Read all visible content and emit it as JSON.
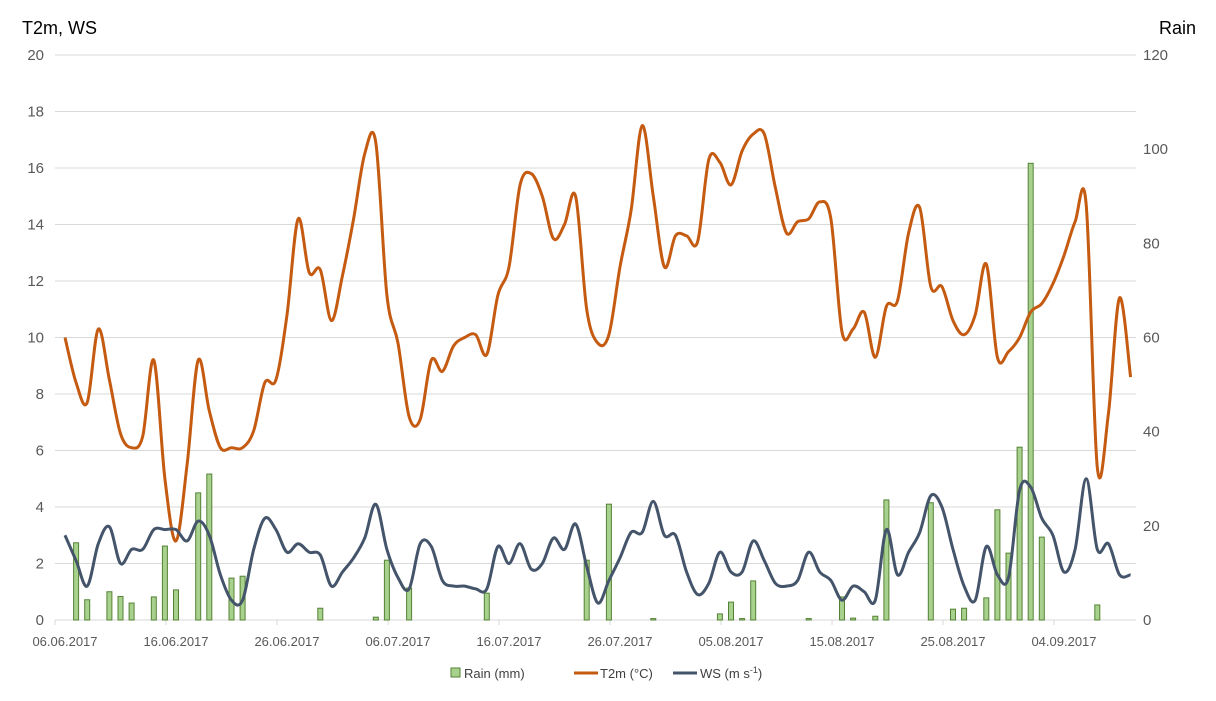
{
  "chart_data": {
    "type": "bar+line",
    "left_axis_title": "T2m, WS",
    "right_axis_title": "Rain",
    "ylim_left": [
      0,
      20
    ],
    "yticks_left": [
      "0",
      "2",
      "4",
      "6",
      "8",
      "10",
      "12",
      "14",
      "16",
      "18",
      "20"
    ],
    "ylim_right": [
      0,
      120
    ],
    "yticks_right": [
      "0",
      "20",
      "40",
      "60",
      "80",
      "100",
      "120"
    ],
    "xtick_labels": [
      "06.06.2017",
      "16.06.2017",
      "26.06.2017",
      "06.07.2017",
      "16.07.2017",
      "26.07.2017",
      "05.08.2017",
      "15.08.2017",
      "25.08.2017",
      "04.09.2017"
    ],
    "grid": true,
    "legend_position": "bottom",
    "x": [
      "06.06.2017",
      "07.06.2017",
      "08.06.2017",
      "09.06.2017",
      "10.06.2017",
      "11.06.2017",
      "12.06.2017",
      "13.06.2017",
      "14.06.2017",
      "15.06.2017",
      "16.06.2017",
      "17.06.2017",
      "18.06.2017",
      "19.06.2017",
      "20.06.2017",
      "21.06.2017",
      "22.06.2017",
      "23.06.2017",
      "24.06.2017",
      "25.06.2017",
      "26.06.2017",
      "27.06.2017",
      "28.06.2017",
      "29.06.2017",
      "30.06.2017",
      "01.07.2017",
      "02.07.2017",
      "03.07.2017",
      "04.07.2017",
      "05.07.2017",
      "06.07.2017",
      "07.07.2017",
      "08.07.2017",
      "09.07.2017",
      "10.07.2017",
      "11.07.2017",
      "12.07.2017",
      "13.07.2017",
      "14.07.2017",
      "15.07.2017",
      "16.07.2017",
      "17.07.2017",
      "18.07.2017",
      "19.07.2017",
      "20.07.2017",
      "21.07.2017",
      "22.07.2017",
      "23.07.2017",
      "24.07.2017",
      "25.07.2017",
      "26.07.2017",
      "27.07.2017",
      "28.07.2017",
      "29.07.2017",
      "30.07.2017",
      "31.07.2017",
      "01.08.2017",
      "02.08.2017",
      "03.08.2017",
      "04.08.2017",
      "05.08.2017",
      "06.08.2017",
      "07.08.2017",
      "08.08.2017",
      "09.08.2017",
      "10.08.2017",
      "11.08.2017",
      "12.08.2017",
      "13.08.2017",
      "14.08.2017",
      "15.08.2017",
      "16.08.2017",
      "17.08.2017",
      "18.08.2017",
      "19.08.2017",
      "20.08.2017",
      "21.08.2017",
      "22.08.2017",
      "23.08.2017",
      "24.08.2017",
      "25.08.2017",
      "26.08.2017",
      "27.08.2017",
      "28.08.2017",
      "29.08.2017",
      "30.08.2017",
      "31.08.2017",
      "01.09.2017",
      "02.09.2017",
      "03.09.2017",
      "04.09.2017",
      "05.09.2017",
      "06.09.2017",
      "07.09.2017",
      "08.09.2017",
      "09.09.2017",
      "10.09.2017"
    ],
    "series": [
      {
        "name": "Rain (mm)",
        "type": "bar",
        "axis": "right",
        "color": "#a9d18e",
        "edge_color": "#548235",
        "values": [
          0,
          16.4,
          4.3,
          0,
          6,
          5,
          3.6,
          0,
          4.9,
          15.7,
          6.4,
          0,
          27,
          31,
          0,
          8.9,
          9.3,
          0,
          0,
          0,
          0,
          0,
          0,
          2.5,
          0,
          0,
          0,
          0,
          0.6,
          12.7,
          0,
          6.8,
          0,
          0,
          0,
          0,
          0,
          0,
          5.7,
          0,
          0,
          0,
          0,
          0,
          0,
          0,
          0,
          12.7,
          0,
          24.6,
          0,
          0,
          0,
          0.3,
          0,
          0,
          0,
          0,
          0,
          1.3,
          3.8,
          0.3,
          8.3,
          0,
          0,
          0,
          0,
          0.3,
          0,
          0,
          4.9,
          0.4,
          0,
          0.8,
          25.5,
          0,
          0,
          0,
          24.9,
          0,
          2.3,
          2.5,
          0,
          4.7,
          23.4,
          14.2,
          36.7,
          97,
          17.6,
          0,
          0,
          0,
          0,
          3.2,
          0,
          0,
          0
        ]
      },
      {
        "name": "T2m (°C)",
        "type": "line",
        "axis": "left",
        "color": "#c55a11",
        "values": [
          10.0,
          8.4,
          7.7,
          10.3,
          8.5,
          6.6,
          6.1,
          6.5,
          9.2,
          5.0,
          2.8,
          5.5,
          9.2,
          7.4,
          6.1,
          6.1,
          6.1,
          6.7,
          8.4,
          8.5,
          10.8,
          14.2,
          12.3,
          12.4,
          10.6,
          12.2,
          14.2,
          16.5,
          16.9,
          11.5,
          9.8,
          7.2,
          7.1,
          9.2,
          8.8,
          9.7,
          10.0,
          10.1,
          9.4,
          11.5,
          12.5,
          15.4,
          15.8,
          15.0,
          13.5,
          14.0,
          15.0,
          11.0,
          9.8,
          10.1,
          12.5,
          14.5,
          17.5,
          15.0,
          12.5,
          13.6,
          13.6,
          13.4,
          16.3,
          16.2,
          15.4,
          16.6,
          17.2,
          17.2,
          15.3,
          13.7,
          14.1,
          14.2,
          14.8,
          14.2,
          10.2,
          10.3,
          10.9,
          9.3,
          11.1,
          11.3,
          13.7,
          14.6,
          11.8,
          11.8,
          10.6,
          10.1,
          10.8,
          12.6,
          9.3,
          9.5,
          10.0,
          10.9,
          11.2,
          11.9,
          12.9,
          14.1,
          14.7,
          5.4,
          7.3,
          11.4,
          8.6
        ]
      },
      {
        "name": "WS (m s-1)",
        "type": "line",
        "axis": "left",
        "color": "#44546a",
        "values": [
          3.0,
          2.1,
          1.2,
          2.7,
          3.3,
          2.0,
          2.5,
          2.5,
          3.2,
          3.2,
          3.2,
          2.8,
          3.5,
          3.0,
          1.6,
          0.7,
          0.7,
          2.5,
          3.6,
          3.2,
          2.4,
          2.7,
          2.4,
          2.3,
          1.2,
          1.7,
          2.2,
          2.9,
          4.1,
          2.5,
          1.5,
          1.1,
          2.7,
          2.6,
          1.4,
          1.2,
          1.2,
          1.1,
          1.1,
          2.6,
          2.0,
          2.7,
          1.8,
          2.0,
          2.9,
          2.5,
          3.4,
          1.9,
          0.6,
          1.4,
          2.2,
          3.1,
          3.1,
          4.2,
          3.0,
          3.0,
          1.7,
          0.9,
          1.3,
          2.4,
          1.7,
          1.7,
          2.8,
          2.1,
          1.3,
          1.2,
          1.4,
          2.4,
          1.7,
          1.4,
          0.7,
          1.2,
          1.0,
          0.7,
          3.2,
          1.6,
          2.4,
          3.1,
          4.4,
          4.0,
          2.5,
          1.2,
          0.7,
          2.6,
          1.6,
          1.5,
          4.6,
          4.7,
          3.6,
          3.0,
          1.7,
          2.5,
          5.0,
          2.5,
          2.7,
          1.6,
          1.6
        ]
      }
    ],
    "legend": {
      "rain_label": "Rain (mm)",
      "t2m_label": "T2m (°C)",
      "ws_label_main": "WS (m s",
      "ws_label_sup": "-1",
      "ws_label_end": ")"
    }
  }
}
